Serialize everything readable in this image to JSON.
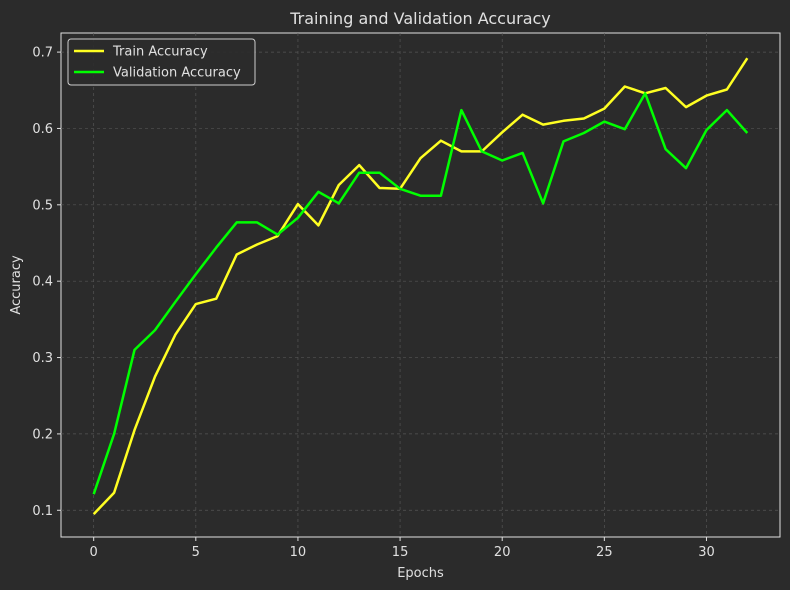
{
  "chart_data": {
    "type": "line",
    "title": "Training and Validation Accuracy",
    "xlabel": "Epochs",
    "ylabel": "Accuracy",
    "xlim": [
      -1.6,
      33.6
    ],
    "ylim": [
      0.065,
      0.725
    ],
    "xticks": [
      0,
      5,
      10,
      15,
      20,
      25,
      30
    ],
    "yticks": [
      0.1,
      0.2,
      0.3,
      0.4,
      0.5,
      0.6,
      0.7
    ],
    "grid": true,
    "legend_position": "top-left",
    "x": [
      0,
      1,
      2,
      3,
      4,
      5,
      6,
      7,
      8,
      9,
      10,
      11,
      12,
      13,
      14,
      15,
      16,
      17,
      18,
      19,
      20,
      21,
      22,
      23,
      24,
      25,
      26,
      27,
      28,
      29,
      30,
      31,
      32
    ],
    "series": [
      {
        "name": "Train Accuracy",
        "color": "#ffff22",
        "values": [
          0.095,
          0.123,
          0.205,
          0.275,
          0.33,
          0.37,
          0.377,
          0.435,
          0.448,
          0.459,
          0.501,
          0.473,
          0.526,
          0.552,
          0.522,
          0.521,
          0.561,
          0.584,
          0.57,
          0.57,
          0.595,
          0.618,
          0.605,
          0.61,
          0.613,
          0.626,
          0.655,
          0.646,
          0.653,
          0.628,
          0.643,
          0.651,
          0.692
        ]
      },
      {
        "name": "Validation Accuracy",
        "color": "#00ff00",
        "values": [
          0.121,
          0.2,
          0.31,
          0.336,
          0.373,
          0.409,
          0.444,
          0.477,
          0.477,
          0.461,
          0.483,
          0.517,
          0.502,
          0.542,
          0.542,
          0.521,
          0.512,
          0.512,
          0.624,
          0.57,
          0.558,
          0.568,
          0.502,
          0.583,
          0.594,
          0.609,
          0.599,
          0.646,
          0.573,
          0.548,
          0.598,
          0.624,
          0.594
        ]
      }
    ]
  }
}
